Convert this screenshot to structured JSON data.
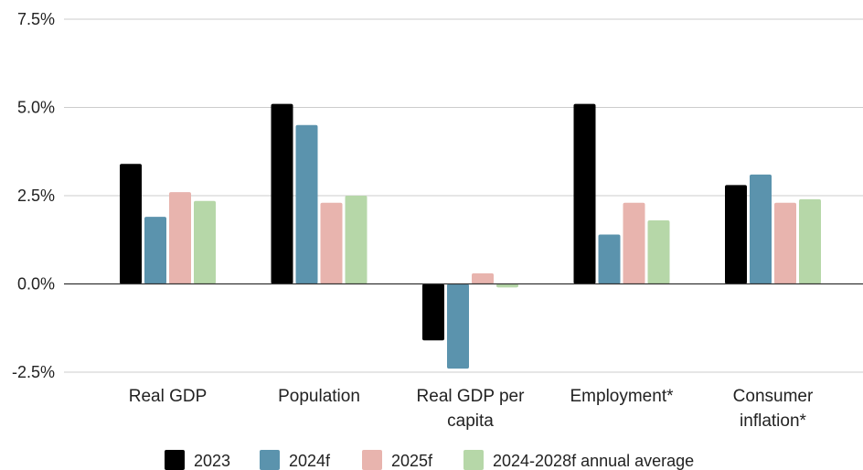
{
  "chart_data": {
    "type": "bar",
    "title": "",
    "xlabel": "",
    "ylabel": "",
    "ylim": [
      -2.5,
      7.5
    ],
    "y_ticks": [
      "-2.5%",
      "0.0%",
      "2.5%",
      "5.0%",
      "7.5%"
    ],
    "y_tick_values": [
      -2.5,
      0,
      2.5,
      5.0,
      7.5
    ],
    "grid": true,
    "legend_position": "bottom",
    "categories": [
      [
        "Real GDP"
      ],
      [
        "Population"
      ],
      [
        "Real GDP per",
        "capita"
      ],
      [
        "Employment*"
      ],
      [
        "Consumer",
        "inflation*"
      ]
    ],
    "series": [
      {
        "name": "2023",
        "color": "#000000",
        "values": [
          3.4,
          5.1,
          -1.6,
          5.1,
          2.8
        ]
      },
      {
        "name": "2024f",
        "color": "#5b93ad",
        "values": [
          1.9,
          4.5,
          -2.4,
          1.4,
          3.1
        ]
      },
      {
        "name": "2025f",
        "color": "#e8b4ae",
        "values": [
          2.6,
          2.3,
          0.3,
          2.3,
          2.3
        ]
      },
      {
        "name": "2024-2028f annual average",
        "color": "#b6d7a8",
        "values": [
          2.35,
          2.5,
          -0.1,
          1.8,
          2.4
        ]
      }
    ]
  }
}
